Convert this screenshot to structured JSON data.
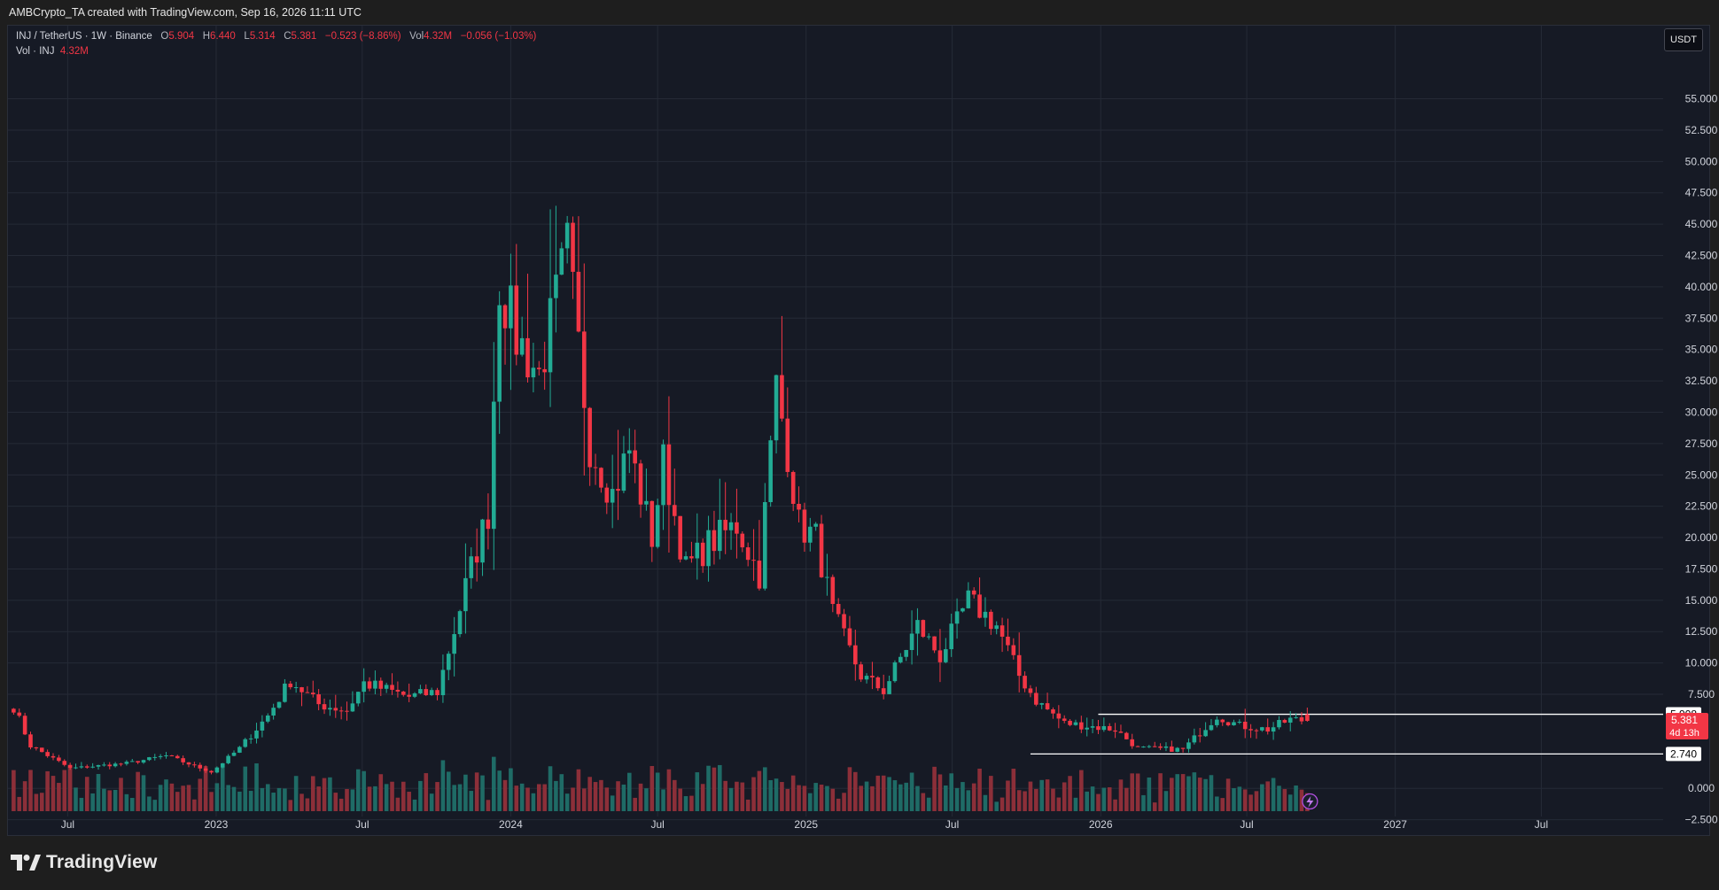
{
  "header": {
    "attribution": "AMBCrypto_TA created with TradingView.com, Sep 16, 2026 11:11 UTC"
  },
  "legend": {
    "symbol": "INJ / TetherUS · 1W · Binance",
    "open_label": "O",
    "open": "5.904",
    "high_label": "H",
    "high": "6.440",
    "low_label": "L",
    "low": "5.314",
    "close_label": "C",
    "close": "5.381",
    "change": "−0.523 (−8.86%)",
    "vol_label": "Vol",
    "vol": "4.32M",
    "vol_change": "−0.056 (−1.03%)",
    "vol_series_label": "Vol · INJ",
    "vol_series_value": "4.32M"
  },
  "currency_button": "USDT",
  "price_tags": {
    "upper_level": "5.908",
    "last_price": "5.381",
    "countdown": "4d 13h",
    "lower_level": "2.740"
  },
  "brand": "TradingView",
  "colors": {
    "up": "#22ab94",
    "down": "#f23645",
    "vol_up": "#1f6b66",
    "vol_down": "#8c2f39",
    "background": "#161a25",
    "grid": "#252a36",
    "level_line": "#ffffff"
  },
  "chart_data": {
    "type": "candlestick",
    "timeframe": "1W",
    "y_axis_ticks": [
      55,
      52.5,
      50,
      47.5,
      45,
      42.5,
      40,
      37.5,
      35,
      32.5,
      30,
      27.5,
      25,
      22.5,
      20,
      17.5,
      15,
      12.5,
      10,
      7.5,
      0,
      -2.5
    ],
    "y_axis_tick_labels": [
      "55.000",
      "52.500",
      "50.000",
      "47.500",
      "45.000",
      "42.500",
      "40.000",
      "37.500",
      "35.000",
      "32.500",
      "30.000",
      "27.500",
      "25.000",
      "22.500",
      "20.000",
      "17.500",
      "15.000",
      "12.500",
      "10.000",
      "7.500",
      "0.000",
      "−2.500"
    ],
    "x_axis_labels": [
      "Jul",
      "2023",
      "Jul",
      "2024",
      "Jul",
      "2025",
      "Jul",
      "2026",
      "Jul",
      "2027",
      "Jul"
    ],
    "x_axis_dates": [
      "2022-07-01",
      "2023-01-01",
      "2023-07-01",
      "2024-01-01",
      "2024-07-01",
      "2025-01-01",
      "2025-07-01",
      "2026-01-01",
      "2026-07-01",
      "2027-01-01",
      "2027-07-01"
    ],
    "ylim": [
      -3.8,
      58.5
    ],
    "horizontal_levels": [
      {
        "value": 5.908,
        "start": "2025-12-29"
      },
      {
        "value": 2.74,
        "start": "2025-10-06"
      }
    ],
    "last_candle": {
      "open": 5.904,
      "high": 6.44,
      "low": 5.314,
      "close": 5.381
    },
    "volume_last": "4.32M",
    "anchors": [
      {
        "date": "2022-04-25",
        "close": 6.5
      },
      {
        "date": "2022-05-16",
        "close": 3.4
      },
      {
        "date": "2022-07-04",
        "close": 1.6
      },
      {
        "date": "2022-09-12",
        "close": 2.0
      },
      {
        "date": "2022-10-31",
        "close": 2.6
      },
      {
        "date": "2022-12-26",
        "close": 1.3
      },
      {
        "date": "2023-01-30",
        "close": 3.2
      },
      {
        "date": "2023-03-06",
        "close": 5.8
      },
      {
        "date": "2023-04-03",
        "close": 8.6
      },
      {
        "date": "2023-05-08",
        "close": 6.7
      },
      {
        "date": "2023-06-12",
        "close": 6.2
      },
      {
        "date": "2023-07-03",
        "close": 8.4
      },
      {
        "date": "2023-08-28",
        "close": 7.3
      },
      {
        "date": "2023-10-02",
        "close": 7.7
      },
      {
        "date": "2023-10-23",
        "close": 12.6
      },
      {
        "date": "2023-11-06",
        "close": 16.1
      },
      {
        "date": "2023-12-04",
        "close": 22.0
      },
      {
        "date": "2023-12-18",
        "close": 40.5
      },
      {
        "date": "2024-01-08",
        "close": 36.0
      },
      {
        "date": "2024-02-05",
        "close": 33.0
      },
      {
        "date": "2024-03-11",
        "close": 42.8
      },
      {
        "date": "2024-04-08",
        "close": 27.5
      },
      {
        "date": "2024-05-06",
        "close": 23.5
      },
      {
        "date": "2024-05-27",
        "close": 27.0
      },
      {
        "date": "2024-06-24",
        "close": 20.0
      },
      {
        "date": "2024-07-08",
        "close": 26.0
      },
      {
        "date": "2024-08-05",
        "close": 17.5
      },
      {
        "date": "2024-09-02",
        "close": 19.5
      },
      {
        "date": "2024-10-07",
        "close": 21.0
      },
      {
        "date": "2024-11-04",
        "close": 17.0
      },
      {
        "date": "2024-11-25",
        "close": 32.0
      },
      {
        "date": "2024-12-09",
        "close": 27.0
      },
      {
        "date": "2024-12-23",
        "close": 21.0
      },
      {
        "date": "2025-01-13",
        "close": 20.0
      },
      {
        "date": "2025-02-03",
        "close": 14.0
      },
      {
        "date": "2025-03-10",
        "close": 9.0
      },
      {
        "date": "2025-04-07",
        "close": 7.8
      },
      {
        "date": "2025-05-19",
        "close": 13.0
      },
      {
        "date": "2025-06-16",
        "close": 10.5
      },
      {
        "date": "2025-07-21",
        "close": 15.0
      },
      {
        "date": "2025-08-25",
        "close": 13.0
      },
      {
        "date": "2025-09-22",
        "close": 9.0
      },
      {
        "date": "2025-10-13",
        "close": 7.0
      },
      {
        "date": "2025-11-17",
        "close": 5.2
      },
      {
        "date": "2026-01-19",
        "close": 4.7
      },
      {
        "date": "2026-02-16",
        "close": 3.2
      },
      {
        "date": "2026-04-13",
        "close": 3.1
      },
      {
        "date": "2026-05-25",
        "close": 5.8
      },
      {
        "date": "2026-06-22",
        "close": 5.0
      },
      {
        "date": "2026-07-27",
        "close": 4.7
      },
      {
        "date": "2026-08-24",
        "close": 5.5
      },
      {
        "date": "2026-09-14",
        "close": 5.381
      }
    ]
  }
}
